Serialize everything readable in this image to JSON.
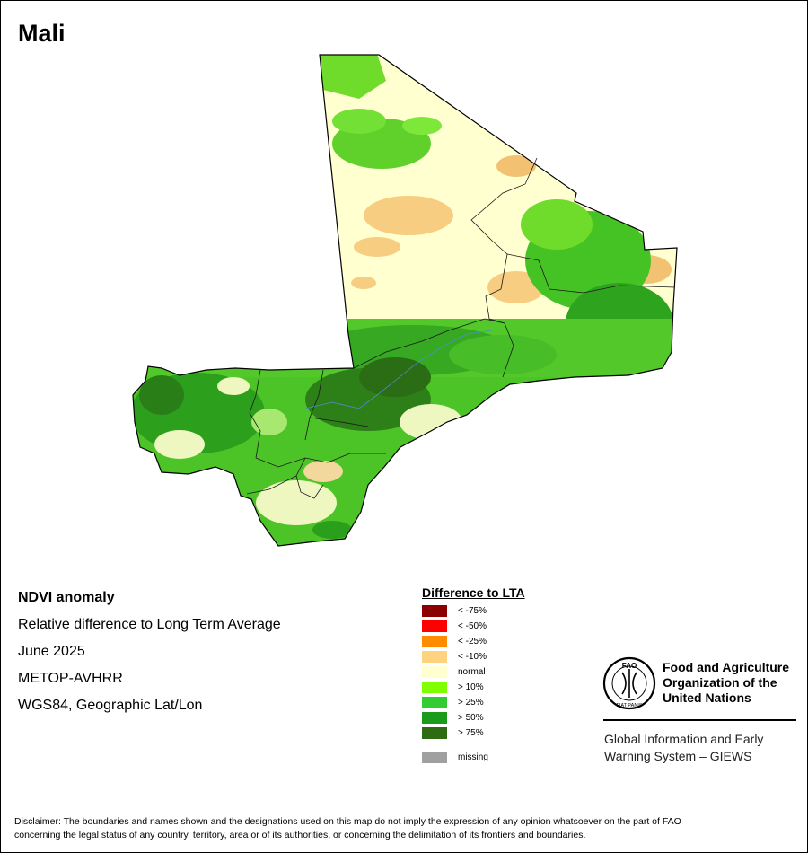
{
  "title": "Mali",
  "info": {
    "line1": "NDVI anomaly",
    "line2": "Relative difference to Long Term Average",
    "line3": "June 2025",
    "line4": "METOP-AVHRR",
    "line5": "WGS84, Geographic Lat/Lon"
  },
  "legend": {
    "title": "Difference to LTA",
    "items": [
      {
        "label": "< -75%",
        "color": "#8b0000"
      },
      {
        "label": "< -50%",
        "color": "#ff0000"
      },
      {
        "label": "< -25%",
        "color": "#ff8c00"
      },
      {
        "label": "< -10%",
        "color": "#ffd27f"
      },
      {
        "label": "normal",
        "color": "#ffffd0"
      },
      {
        "label": "> 10%",
        "color": "#7fff00"
      },
      {
        "label": "> 25%",
        "color": "#32cd32"
      },
      {
        "label": "> 50%",
        "color": "#1a9c1a"
      },
      {
        "label": "> 75%",
        "color": "#2f6b10"
      }
    ],
    "missing": {
      "label": "missing",
      "color": "#a0a0a0"
    }
  },
  "fao": {
    "line1": "Food and Agriculture",
    "line2": "Organization of the",
    "line3": "United Nations",
    "emblem_text": "FAO",
    "motto": "FIAT PANIS"
  },
  "giews": {
    "line1": "Global Information and Early",
    "line2": "Warning System – GIEWS"
  },
  "disclaimer": {
    "line1": "Disclaimer: The boundaries and names shown and the designations used on this map do not imply the expression of any opinion whatsoever on the part of FAO",
    "line2": "concerning the legal status of any country, territory, area or of its authorities, or concerning the delimitation of its frontiers and boundaries."
  }
}
